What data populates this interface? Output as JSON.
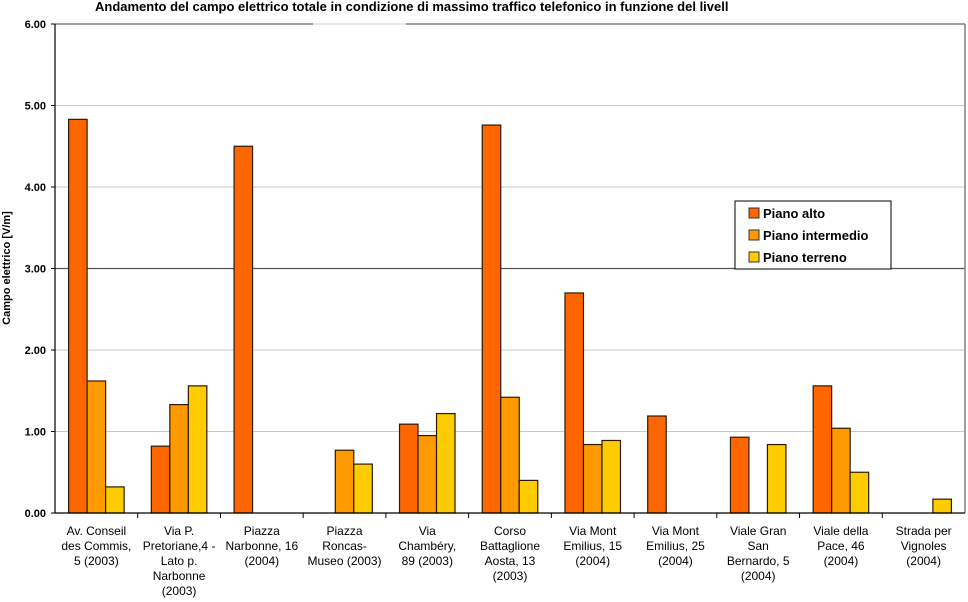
{
  "chart_data": {
    "type": "bar",
    "title": "Andamento del campo elettrico totale in condizione di massimo traffico telefonico in funzione del livell",
    "xlabel": "",
    "ylabel": "Campo elettrico [V/m]",
    "ylim": [
      0,
      6
    ],
    "yticks": [
      "0.00",
      "1.00",
      "2.00",
      "3.00",
      "4.00",
      "5.00",
      "6.00"
    ],
    "grid": true,
    "reference_line": 3.0,
    "legend_position": "right",
    "categories": [
      [
        "Av. Conseil",
        "des Commis,",
        "5 (2003)"
      ],
      [
        "Via P.",
        "Pretoriane,4 -",
        "Lato p.",
        "Narbonne",
        "(2003)"
      ],
      [
        "Piazza",
        "Narbonne, 16",
        "(2004)"
      ],
      [
        "Piazza",
        "Roncas-",
        "Museo (2003)"
      ],
      [
        "Via",
        "Chambéry,",
        "89 (2003)"
      ],
      [
        "Corso",
        "Battaglione",
        "Aosta, 13",
        "(2003)"
      ],
      [
        "Via Mont",
        "Emilius, 15",
        "(2004)"
      ],
      [
        "Via Mont",
        "Emilius, 25",
        "(2004)"
      ],
      [
        "Viale Gran",
        "San",
        "Bernardo, 5",
        "(2004)"
      ],
      [
        "Viale della",
        "Pace, 46",
        "(2004)"
      ],
      [
        "Strada per",
        "Vignoles",
        "(2004)"
      ]
    ],
    "series": [
      {
        "name": "Piano alto",
        "color": "#FF6600",
        "values": [
          4.83,
          0.82,
          4.5,
          null,
          1.09,
          4.76,
          2.7,
          1.19,
          0.93,
          1.56,
          null
        ]
      },
      {
        "name": "Piano intermedio",
        "color": "#FF9900",
        "values": [
          1.62,
          1.33,
          null,
          0.77,
          0.95,
          1.42,
          0.84,
          null,
          null,
          1.04,
          null
        ]
      },
      {
        "name": "Piano terreno",
        "color": "#FFCC00",
        "values": [
          0.32,
          1.56,
          null,
          0.6,
          1.22,
          0.4,
          0.89,
          null,
          0.84,
          0.5,
          0.17
        ]
      }
    ]
  }
}
